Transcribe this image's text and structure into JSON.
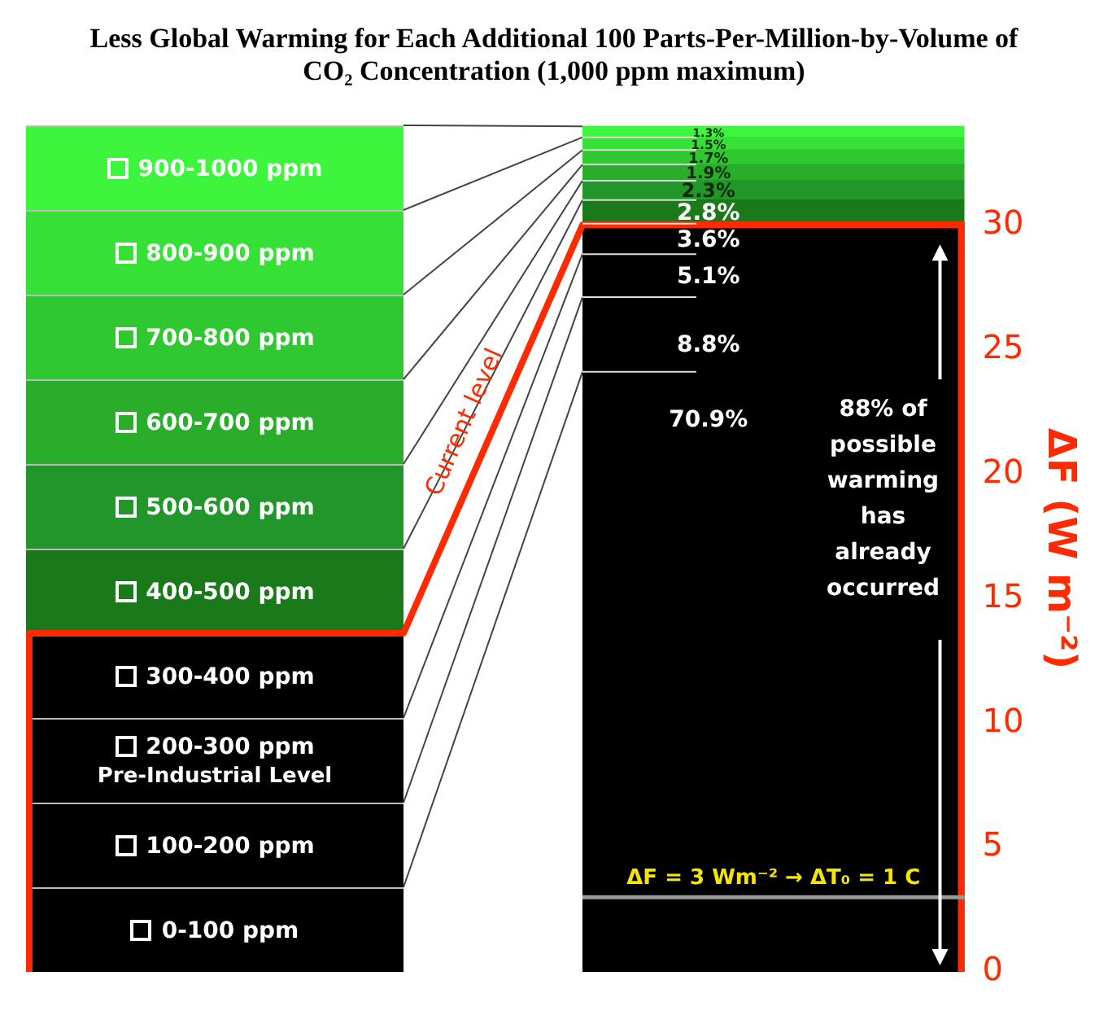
{
  "chart_data": {
    "type": "bar",
    "title": "Less Global Warming for Each Additional 100 Parts-Per-Million-by-Volume of CO₂ Concentration (1,000 ppm maximum)",
    "ylabel": "ΔF (W m⁻²)",
    "categories": [
      null
    ],
    "stacked": true,
    "legend": "left",
    "grid": false,
    "ylim": [
      0,
      34
    ],
    "yticks": [
      0,
      5,
      10,
      15,
      20,
      25,
      30
    ],
    "series": [
      {
        "name": "0-100 ppm",
        "color": "#000000",
        "values": [
          24.1
        ]
      },
      {
        "name": "100-200 ppm",
        "color": "#000000",
        "values": [
          3.0
        ]
      },
      {
        "name": "200-300 ppm",
        "color": "#000000",
        "values": [
          1.73
        ]
      },
      {
        "name": "300-400 ppm",
        "color": "#000000",
        "values": [
          1.22
        ]
      },
      {
        "name": "400-500 ppm",
        "color": "#1a7a1a",
        "values": [
          0.95
        ]
      },
      {
        "name": "500-600 ppm",
        "color": "#22962a",
        "values": [
          0.78
        ]
      },
      {
        "name": "600-700 ppm",
        "color": "#2aad2a",
        "values": [
          0.65
        ]
      },
      {
        "name": "700-800 ppm",
        "color": "#30c830",
        "values": [
          0.58
        ]
      },
      {
        "name": "800-900 ppm",
        "color": "#36e036",
        "values": [
          0.51
        ]
      },
      {
        "name": "900-1000 ppm",
        "color": "#3cf53c",
        "values": [
          0.44
        ]
      }
    ],
    "ref_lines": [
      {
        "axis": "y",
        "value": 30,
        "label": "Current level",
        "color": "#ff2a00"
      },
      {
        "axis": "y",
        "value": 3,
        "label": "ΔF = 3 Wm⁻² → ΔT₀ = 1 C",
        "color": "#999999"
      }
    ],
    "annotations": [
      "Pre-Industrial Level",
      "88% of possible warming has already occurred",
      "70.9%",
      "8.8%",
      "5.1%",
      "3.6%",
      "2.8%",
      "2.3%",
      "1.9%",
      "1.7%",
      "1.5%",
      "1.3%"
    ]
  }
}
